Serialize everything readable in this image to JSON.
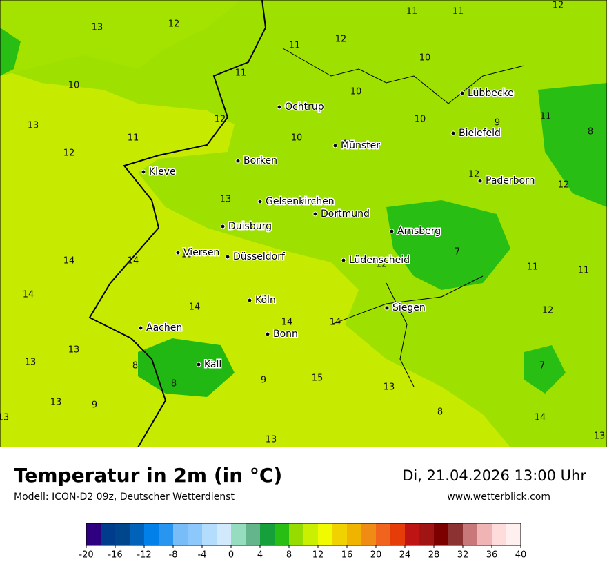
{
  "header": {
    "title": "Temperatur in 2m (in °C)",
    "subtitle": "Modell: ICON-D2 09z, Deutscher Wetterdienst",
    "datetime": "Di, 21.04.2026 13:00 Uhr",
    "website": "www.wetterblick.com"
  },
  "map": {
    "cities": [
      "Ochtrup",
      "Münster",
      "Lübbecke",
      "Bielefeld",
      "Paderborn",
      "Borken",
      "Kleve",
      "Gelsenkirchen",
      "Dortmund",
      "Duisburg",
      "Arnsberg",
      "Viersen",
      "Düsseldorf",
      "Lüdenscheid",
      "Köln",
      "Siegen",
      "Aachen",
      "Bonn",
      "Kall"
    ],
    "temperature_labels": [
      13,
      12,
      11,
      12,
      11,
      11,
      12,
      11,
      10,
      10,
      10,
      13,
      12,
      11,
      10,
      10,
      9,
      11,
      8,
      12,
      12,
      12,
      12,
      13,
      7,
      13,
      14,
      14,
      12,
      11,
      11,
      14,
      14,
      14,
      14,
      12,
      13,
      13,
      8,
      8,
      9,
      15,
      13,
      7,
      13,
      9,
      8,
      13,
      14,
      13,
      13
    ]
  },
  "colorbar": {
    "colors": [
      "#2e0080",
      "#003c8c",
      "#00468c",
      "#0062b8",
      "#0080e8",
      "#2896f0",
      "#78bcf8",
      "#8cc8fc",
      "#b4dcfc",
      "#d2e8fc",
      "#96dcbe",
      "#64b48c",
      "#16a03c",
      "#28be14",
      "#96dc00",
      "#c8f000",
      "#f0fa00",
      "#f0d200",
      "#f0b400",
      "#f08c14",
      "#f0641e",
      "#e63c0a",
      "#be1414",
      "#a01414",
      "#7d0000",
      "#8c3232",
      "#c87878",
      "#f0b4b4",
      "#ffdcdc",
      "#fff0f0"
    ],
    "ticks": [
      -20,
      -16,
      -12,
      -8,
      -4,
      0,
      4,
      8,
      12,
      16,
      20,
      24,
      28,
      32,
      36,
      40
    ]
  }
}
